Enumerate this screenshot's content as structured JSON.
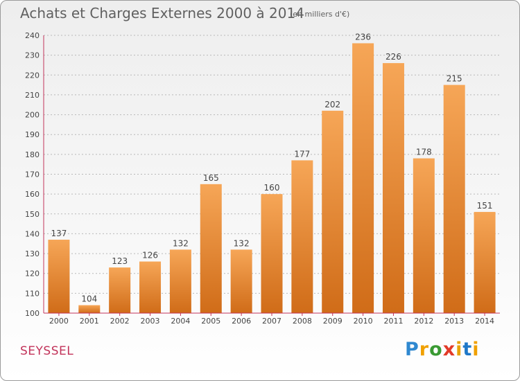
{
  "header": {
    "title": "Achats et Charges Externes 2000 à 2014",
    "unit": "(en milliers d'€)"
  },
  "footer": {
    "place": "SEYSSEL",
    "brand": "Proxiti",
    "brand_letters": [
      "P",
      "r",
      "o",
      "x",
      "i",
      "t",
      "i"
    ]
  },
  "colors": {
    "bar_light": "#f6a657",
    "bar_dark": "#d06c18",
    "grid": "#b8b8b8",
    "axis": "#c2335a",
    "title": "#606060",
    "place": "#c2335a"
  },
  "chart_data": {
    "type": "bar",
    "categories": [
      "2000",
      "2001",
      "2002",
      "2003",
      "2004",
      "2005",
      "2006",
      "2007",
      "2008",
      "2009",
      "2010",
      "2011",
      "2012",
      "2013",
      "2014"
    ],
    "values": [
      137,
      104,
      123,
      126,
      132,
      165,
      132,
      160,
      177,
      202,
      236,
      226,
      178,
      215,
      151
    ],
    "data_labels": [
      "137",
      "104",
      "123",
      "126",
      "132",
      "165",
      "132",
      "160",
      "177",
      "202",
      "236",
      "226",
      "178",
      "215",
      "151"
    ],
    "title": "Achats et Charges Externes 2000 à 2014",
    "ylim": [
      100,
      240
    ],
    "yticks": [
      "100",
      "110",
      "120",
      "130",
      "140",
      "150",
      "160",
      "170",
      "180",
      "190",
      "200",
      "210",
      "220",
      "230",
      "240"
    ],
    "grid": "horizontal",
    "legend": "none"
  }
}
